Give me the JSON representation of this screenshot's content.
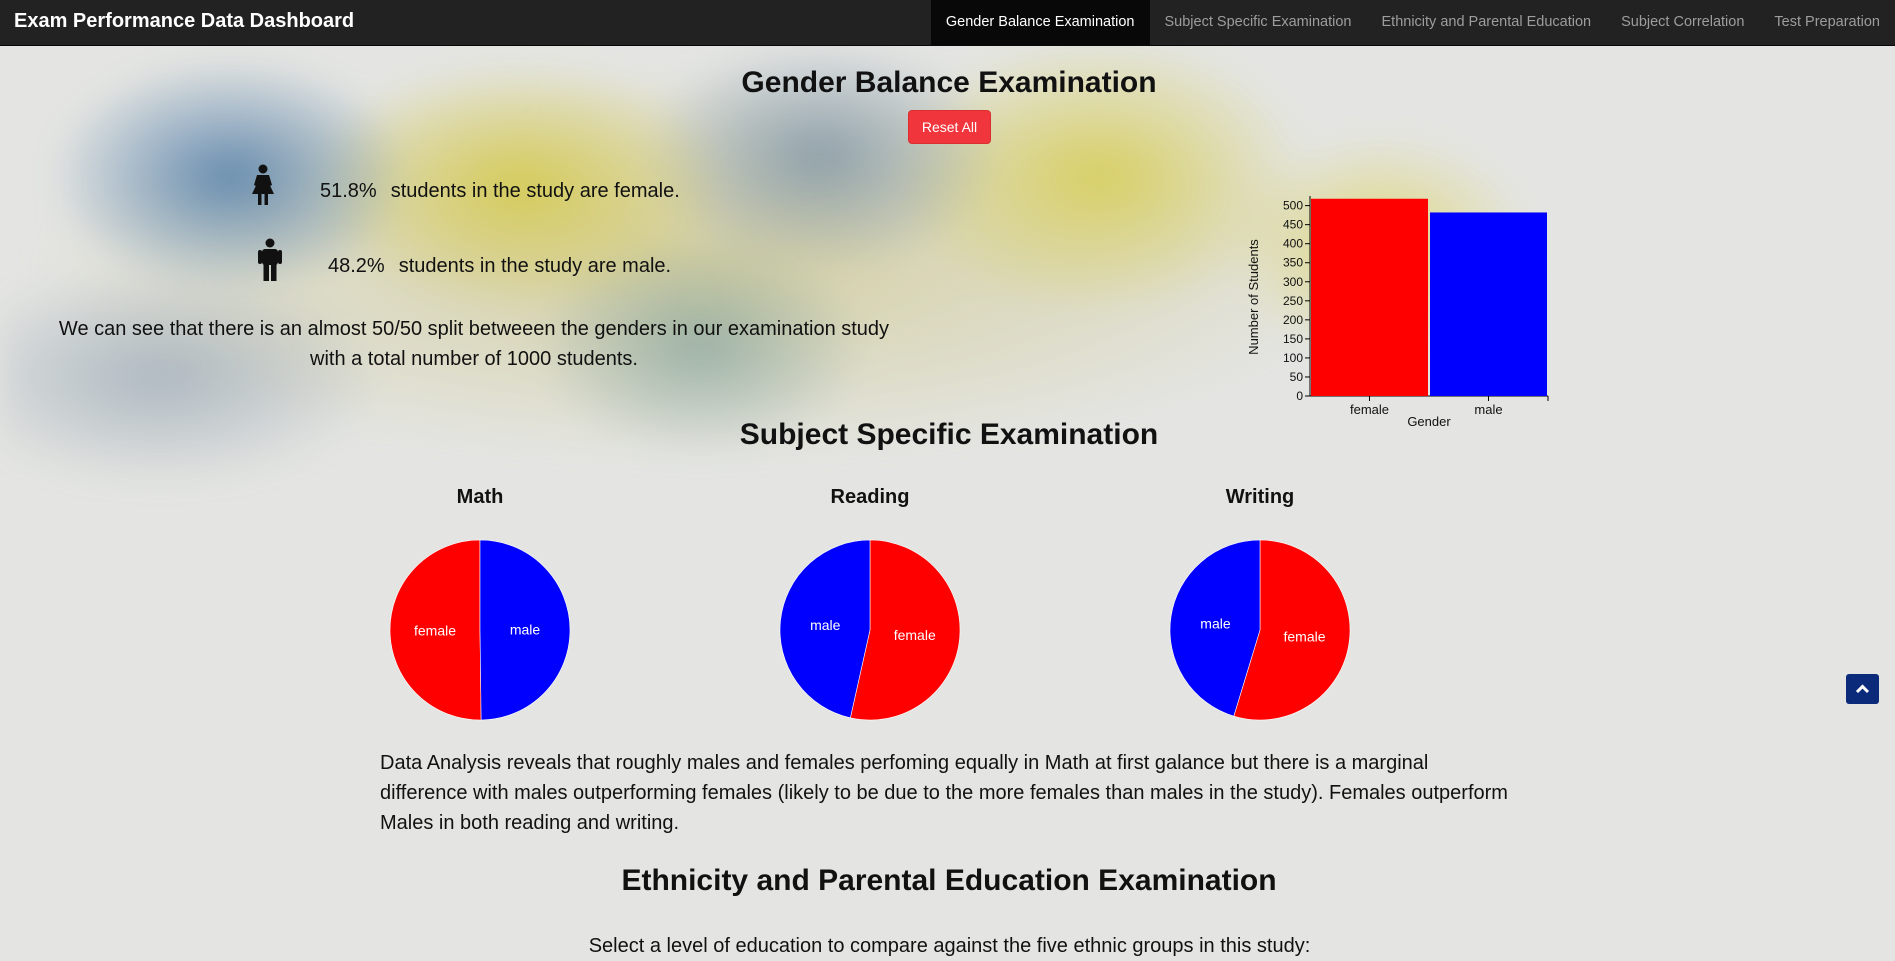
{
  "app": {
    "title": "Exam Performance Data Dashboard"
  },
  "nav": {
    "items": [
      {
        "label": "Gender Balance Examination",
        "active": true
      },
      {
        "label": "Subject Specific Examination",
        "active": false
      },
      {
        "label": "Ethnicity and Parental Education",
        "active": false
      },
      {
        "label": "Subject Correlation",
        "active": false
      },
      {
        "label": "Test Preparation",
        "active": false
      }
    ]
  },
  "gender": {
    "heading": "Gender Balance Examination",
    "reset_label": "Reset All",
    "female_pct": "51.8%",
    "female_text": "students in the study are female.",
    "male_pct": "48.2%",
    "male_text": "students in the study are male.",
    "summary_line1": "We can see that there is an almost 50/50 split betweeen the genders in our examination study",
    "summary_line2": "with a total number of 1000 students."
  },
  "subject": {
    "heading": "Subject Specific Examination",
    "analysis": "Data Analysis reveals that roughly males and females perfoming equally in Math at first galance but there is a marginal difference with males outperforming females (likely to be due to the more females than males in the study). Females outperform Males in both reading and writing."
  },
  "ethnicity": {
    "heading": "Ethnicity and Parental Education Examination",
    "prompt": "Select a level of education to compare against the five ethnic groups in this study:"
  },
  "colors": {
    "female": "#ff0000",
    "male": "#0000ff",
    "reset": "#f0363c",
    "navbar": "#222222"
  },
  "icons": {
    "female": "female-figure-icon",
    "male": "male-figure-icon",
    "scroll_top": "chevron-up-icon"
  },
  "chart_data": [
    {
      "type": "bar",
      "categories": [
        "female",
        "male"
      ],
      "values": [
        518,
        482
      ],
      "xlabel": "Gender",
      "ylabel": "Number of Students",
      "ylim": [
        0,
        520
      ],
      "yticks": [
        0,
        50,
        100,
        150,
        200,
        250,
        300,
        350,
        400,
        450,
        500
      ],
      "colors": [
        "#ff0000",
        "#0000ff"
      ]
    },
    {
      "type": "pie",
      "title": "Math",
      "labels": [
        "female",
        "male"
      ],
      "values": [
        50.2,
        49.8
      ],
      "colors": [
        "#ff0000",
        "#0000ff"
      ]
    },
    {
      "type": "pie",
      "title": "Reading",
      "labels": [
        "female",
        "male"
      ],
      "values": [
        53.5,
        46.5
      ],
      "colors": [
        "#ff0000",
        "#0000ff"
      ]
    },
    {
      "type": "pie",
      "title": "Writing",
      "labels": [
        "female",
        "male"
      ],
      "values": [
        54.7,
        45.3
      ],
      "colors": [
        "#ff0000",
        "#0000ff"
      ]
    }
  ]
}
